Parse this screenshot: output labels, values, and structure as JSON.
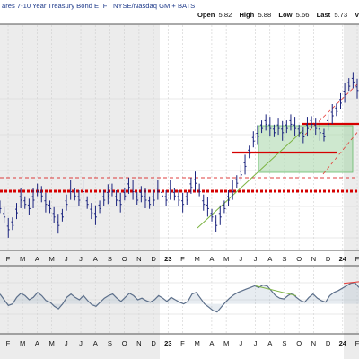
{
  "header": {
    "title": "ares 7-10 Year Treasury Bond ETF",
    "exchange": "NYSE/Nasdaq GM + BATS",
    "ohlc": {
      "open_label": "Open",
      "open_value": "5.82",
      "high_label": "High",
      "high_value": "5.88",
      "low_label": "Low",
      "low_value": "5.66",
      "last_label": "Last",
      "last_value": "5.73",
      "vol_label": "Vo"
    }
  },
  "colors": {
    "price_bar": "#1a237e",
    "support_line": "#d50000",
    "resistance_line": "#d50000",
    "trend_line": "#7cb342",
    "range_box": "#a5d6a7",
    "channel": "#e53935",
    "indicator_line": "#5c6f8a",
    "indicator_fill": "#9fb3c8",
    "shading": "#ececec"
  },
  "chart_data": [
    {
      "type": "ohlc",
      "title": "ares 7-10 Year Treasury Bond ETF",
      "x_tick_labels": [
        "F",
        "M",
        "A",
        "M",
        "J",
        "J",
        "A",
        "S",
        "O",
        "N",
        "D",
        "23",
        "F",
        "M",
        "A",
        "M",
        "J",
        "J",
        "A",
        "S",
        "O",
        "N",
        "D",
        "24",
        "F"
      ],
      "price_index": [
        8,
        6,
        3,
        4,
        7,
        10,
        9,
        8,
        10,
        12,
        11,
        9,
        8,
        6,
        4,
        6,
        9,
        12,
        11,
        10,
        12,
        9,
        7,
        6,
        8,
        10,
        11,
        12,
        10,
        9,
        11,
        13,
        12,
        10,
        11,
        10,
        9,
        10,
        12,
        11,
        10,
        12,
        11,
        10,
        9,
        10,
        13,
        14,
        12,
        9,
        8,
        6,
        4,
        6,
        8,
        10,
        12,
        14,
        16,
        18,
        21,
        24,
        25,
        27,
        28,
        27,
        26,
        27,
        26,
        27,
        28,
        27,
        26,
        25,
        27,
        28,
        27,
        26,
        25,
        28,
        30,
        31,
        33,
        35,
        37,
        38,
        36
      ],
      "series": [
        {
          "annotation": "horizontal support",
          "value": 10.0
        },
        {
          "annotation": "horizontal resistance",
          "value": 14.0
        },
        {
          "annotation": "mid resistance",
          "value": 24.0
        },
        {
          "annotation": "upper resistance",
          "value": 31.0
        }
      ],
      "ylim": [
        0,
        40
      ]
    },
    {
      "type": "line",
      "values": [
        62,
        55,
        48,
        50,
        58,
        63,
        60,
        55,
        58,
        64,
        60,
        54,
        52,
        47,
        44,
        50,
        58,
        62,
        58,
        55,
        60,
        54,
        49,
        47,
        52,
        57,
        60,
        62,
        57,
        53,
        58,
        63,
        60,
        55,
        57,
        54,
        52,
        55,
        60,
        57,
        53,
        58,
        55,
        52,
        50,
        53,
        62,
        64,
        57,
        50,
        46,
        42,
        40,
        46,
        52,
        57,
        61,
        64,
        66,
        68,
        70,
        72,
        70,
        73,
        72,
        66,
        60,
        57,
        56,
        60,
        63,
        58,
        54,
        52,
        58,
        62,
        57,
        54,
        52,
        60,
        64,
        66,
        69,
        72,
        75,
        76,
        70
      ],
      "ylim": [
        20,
        90
      ]
    }
  ]
}
